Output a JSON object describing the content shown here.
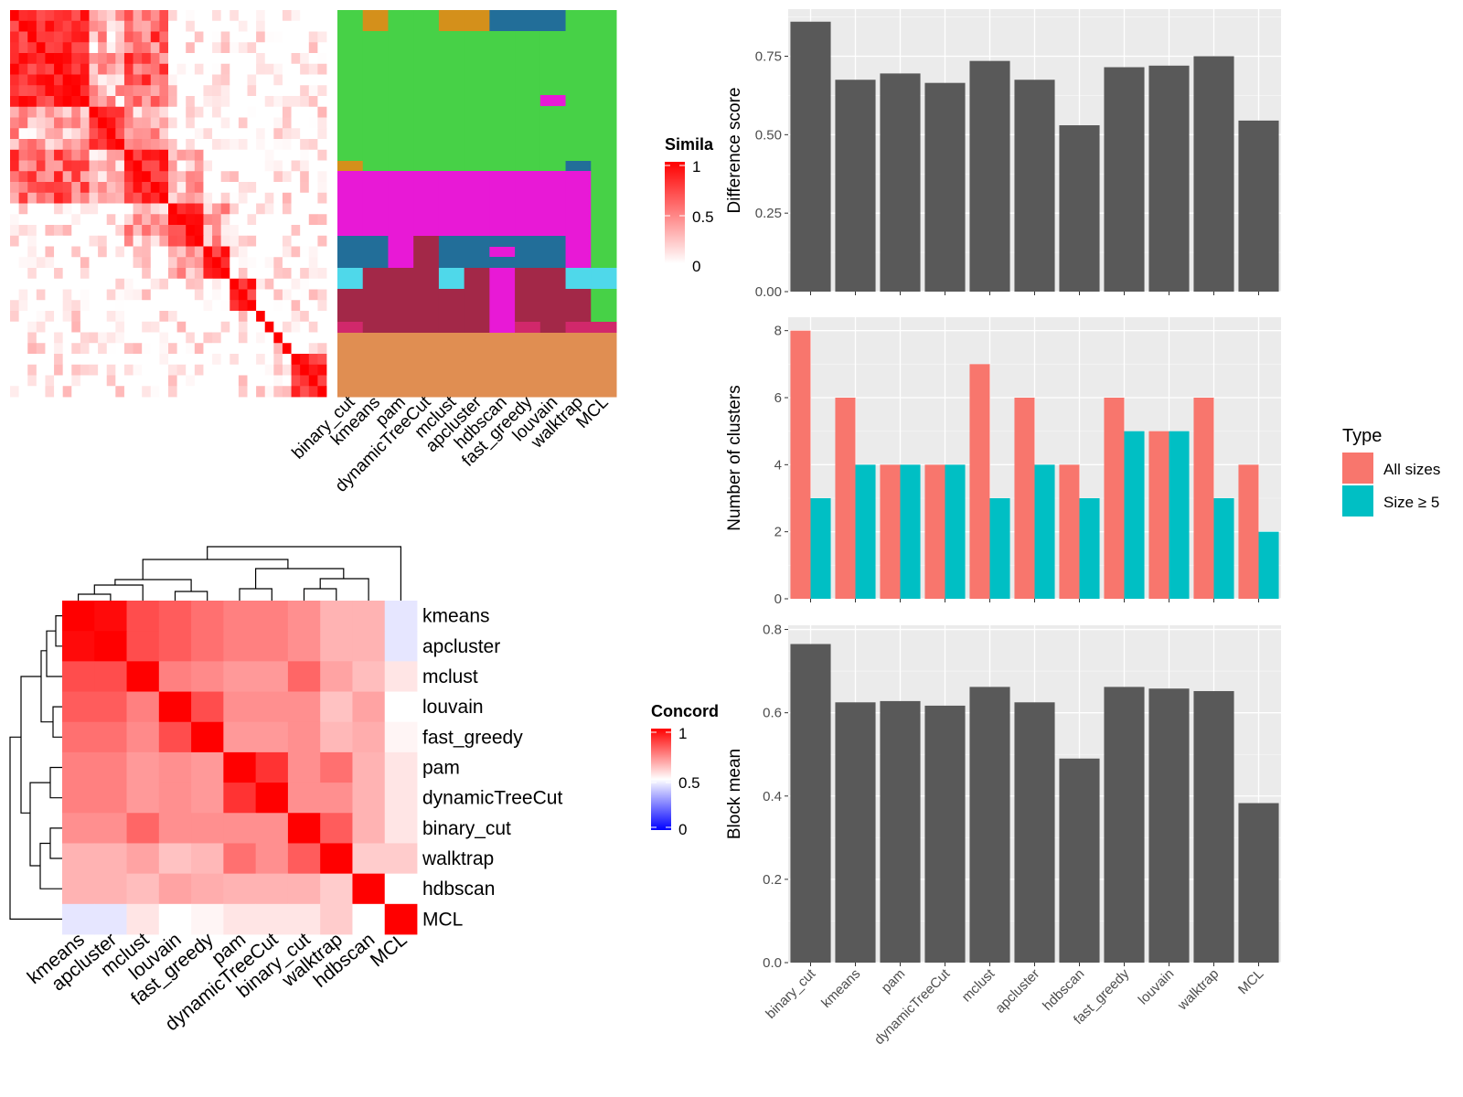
{
  "colors": {
    "sim_high": "#ff0000",
    "sim_low": "#ffffff",
    "conc_high": "#ff0000",
    "conc_mid": "#ffffff",
    "conc_low": "#0000ff",
    "bar_fill": "#595959",
    "panel_bg": "#ebebeb",
    "grid_line": "#ffffff",
    "all_sizes": "#f8766d",
    "size5": "#00bfc4",
    "c_green": "#47d147",
    "c_gold": "#d4901b",
    "c_blue": "#226e99",
    "c_magenta": "#e819d6",
    "c_cyan": "#4fd8ea",
    "c_maroon": "#a32848",
    "c_pink": "#d1286b",
    "c_orange": "#e08e52"
  },
  "chart_data": [
    {
      "id": "similarity-heatmap",
      "type": "heatmap",
      "legend_title": "Simila",
      "legend_ticks": [
        "1",
        "0.5",
        "0"
      ],
      "n_rows": 36,
      "note_values": "block-structured similarity matrix (values 0..1)"
    },
    {
      "id": "class-assignment",
      "type": "heatmap",
      "columns": [
        "binary_cut",
        "kmeans",
        "pam",
        "dynamicTreeCut",
        "mclust",
        "apcluster",
        "hdbscan",
        "fast_greedy",
        "louvain",
        "walktrap",
        "MCL"
      ]
    },
    {
      "id": "concordance-heatmap",
      "type": "heatmap",
      "legend_title": "Concord",
      "legend_ticks": [
        "1",
        "0.5",
        "0"
      ],
      "labels": [
        "kmeans",
        "apcluster",
        "mclust",
        "louvain",
        "fast_greedy",
        "pam",
        "dynamicTreeCut",
        "binary_cut",
        "walktrap",
        "hdbscan",
        "MCL"
      ],
      "matrix": [
        [
          1.0,
          0.98,
          0.85,
          0.82,
          0.78,
          0.75,
          0.75,
          0.72,
          0.65,
          0.65,
          0.45
        ],
        [
          0.98,
          1.0,
          0.85,
          0.82,
          0.78,
          0.75,
          0.75,
          0.72,
          0.65,
          0.65,
          0.45
        ],
        [
          0.85,
          0.85,
          1.0,
          0.75,
          0.73,
          0.7,
          0.7,
          0.8,
          0.68,
          0.63,
          0.55
        ],
        [
          0.82,
          0.82,
          0.75,
          1.0,
          0.85,
          0.72,
          0.72,
          0.72,
          0.62,
          0.68,
          0.5
        ],
        [
          0.78,
          0.78,
          0.73,
          0.85,
          1.0,
          0.7,
          0.7,
          0.72,
          0.64,
          0.66,
          0.52
        ],
        [
          0.75,
          0.75,
          0.7,
          0.72,
          0.7,
          1.0,
          0.9,
          0.72,
          0.78,
          0.65,
          0.55
        ],
        [
          0.75,
          0.75,
          0.7,
          0.72,
          0.7,
          0.9,
          1.0,
          0.72,
          0.72,
          0.65,
          0.55
        ],
        [
          0.72,
          0.72,
          0.8,
          0.72,
          0.72,
          0.72,
          0.72,
          1.0,
          0.82,
          0.65,
          0.55
        ],
        [
          0.65,
          0.65,
          0.68,
          0.62,
          0.64,
          0.78,
          0.72,
          0.82,
          1.0,
          0.6,
          0.6
        ],
        [
          0.65,
          0.65,
          0.63,
          0.68,
          0.66,
          0.65,
          0.65,
          0.65,
          0.6,
          1.0,
          0.5
        ],
        [
          0.45,
          0.45,
          0.55,
          0.5,
          0.52,
          0.55,
          0.55,
          0.55,
          0.6,
          0.5,
          1.0
        ]
      ]
    },
    {
      "id": "difference-score",
      "type": "bar",
      "categories": [
        "binary_cut",
        "kmeans",
        "pam",
        "dynamicTreeCut",
        "mclust",
        "apcluster",
        "hdbscan",
        "fast_greedy",
        "louvain",
        "walktrap",
        "MCL"
      ],
      "values": [
        0.86,
        0.675,
        0.695,
        0.665,
        0.735,
        0.675,
        0.53,
        0.715,
        0.72,
        0.75,
        0.545
      ],
      "ylabel": "Difference score",
      "ylim": [
        0,
        0.9
      ],
      "yticks": [
        "0.00",
        "0.25",
        "0.50",
        "0.75"
      ]
    },
    {
      "id": "number-of-clusters",
      "type": "bar",
      "categories": [
        "binary_cut",
        "kmeans",
        "pam",
        "dynamicTreeCut",
        "mclust",
        "apcluster",
        "hdbscan",
        "fast_greedy",
        "louvain",
        "walktrap",
        "MCL"
      ],
      "series": [
        {
          "name": "All sizes",
          "values": [
            8,
            6,
            4,
            4,
            7,
            6,
            4,
            6,
            5,
            6,
            4
          ]
        },
        {
          "name": "Size ≥ 5",
          "values": [
            3,
            4,
            4,
            4,
            3,
            4,
            3,
            5,
            5,
            3,
            2
          ]
        }
      ],
      "ylabel": "Number of clusters",
      "ylim": [
        0,
        8.4
      ],
      "yticks": [
        "0",
        "2",
        "4",
        "6",
        "8"
      ],
      "legend_title": "Type",
      "legend_position": "right"
    },
    {
      "id": "block-mean",
      "type": "bar",
      "categories": [
        "binary_cut",
        "kmeans",
        "pam",
        "dynamicTreeCut",
        "mclust",
        "apcluster",
        "hdbscan",
        "fast_greedy",
        "louvain",
        "walktrap",
        "MCL"
      ],
      "values": [
        0.765,
        0.625,
        0.628,
        0.617,
        0.662,
        0.625,
        0.49,
        0.662,
        0.658,
        0.652,
        0.383
      ],
      "ylabel": "Block mean",
      "ylim": [
        0,
        0.81
      ],
      "yticks": [
        "0.0",
        "0.2",
        "0.4",
        "0.6",
        "0.8"
      ]
    }
  ]
}
